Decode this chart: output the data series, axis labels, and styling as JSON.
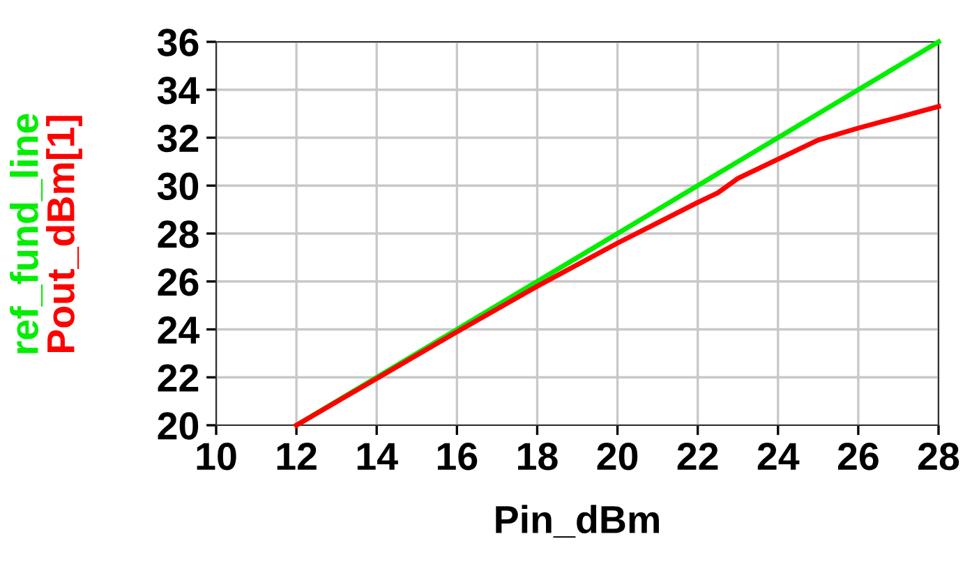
{
  "chart_data": {
    "type": "line",
    "xlabel": "Pin_dBm",
    "x": [
      12,
      14,
      16,
      18,
      20,
      21,
      22,
      22.5,
      23,
      24,
      25,
      26,
      27,
      28
    ],
    "series": [
      {
        "name": "ref_fund_line",
        "color": "#00ee00",
        "values": [
          20,
          22,
          24,
          26,
          28,
          29,
          30,
          30.5,
          31,
          32,
          33,
          34,
          35,
          36
        ]
      },
      {
        "name": "Pout_dBm[1]",
        "color": "#ff0000",
        "values": [
          20,
          21.95,
          23.9,
          25.8,
          27.6,
          28.45,
          29.3,
          29.7,
          30.3,
          31.1,
          31.9,
          32.4,
          32.85,
          33.3
        ]
      }
    ],
    "xlim": [
      10,
      28
    ],
    "xticks": [
      10,
      12,
      14,
      16,
      18,
      20,
      22,
      24,
      26,
      28
    ],
    "ylim": [
      20,
      36
    ],
    "yticks": [
      20,
      22,
      24,
      26,
      28,
      30,
      32,
      34,
      36
    ],
    "grid": true,
    "legend": "left",
    "marker": "none",
    "line_style": "solid"
  }
}
